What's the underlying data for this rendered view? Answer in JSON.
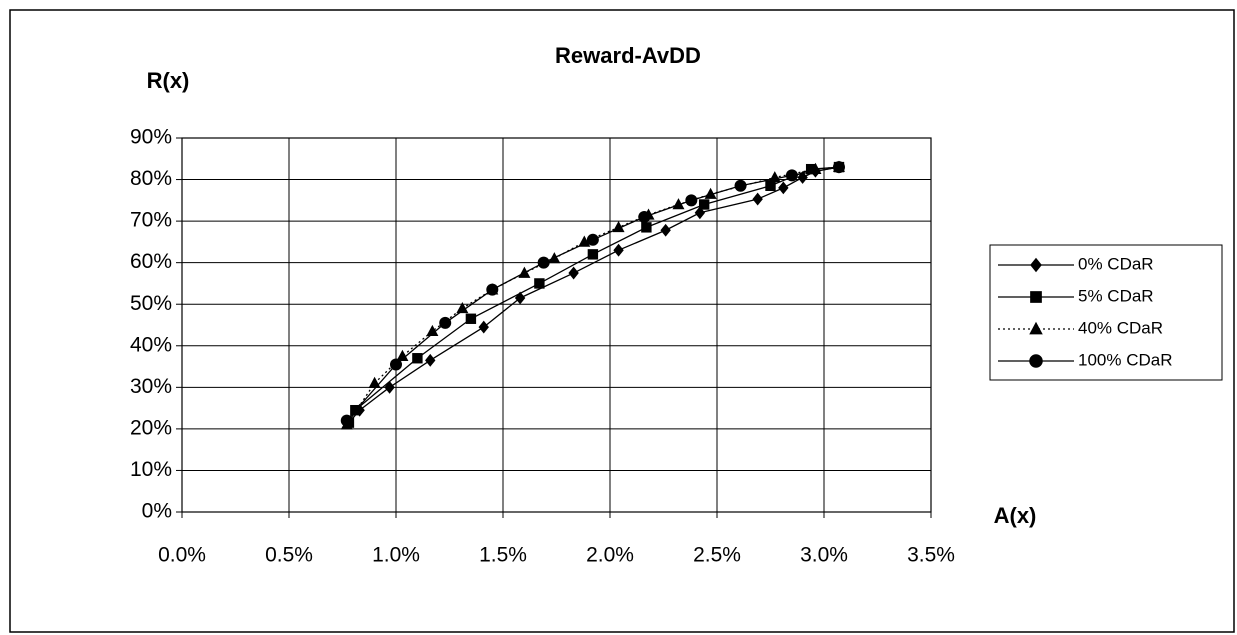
{
  "chart_data": {
    "type": "line",
    "title": "Reward-AvDD",
    "y_label": "R(x)",
    "x_label": "A(x)",
    "xlim": [
      0,
      3.5
    ],
    "ylim": [
      0,
      90
    ],
    "grid": true,
    "legend": "right",
    "xticks": [
      {
        "value": 0,
        "label": "0.0%"
      },
      {
        "value": 0.5,
        "label": "0.5%"
      },
      {
        "value": 1,
        "label": "1.0%"
      },
      {
        "value": 1.5,
        "label": "1.5%"
      },
      {
        "value": 2,
        "label": "2.0%"
      },
      {
        "value": 2.5,
        "label": "2.5%"
      },
      {
        "value": 3,
        "label": "3.0%"
      },
      {
        "value": 3.5,
        "label": "3.5%"
      }
    ],
    "yticks": [
      {
        "value": 0,
        "label": "0%"
      },
      {
        "value": 10,
        "label": "10%"
      },
      {
        "value": 20,
        "label": "20%"
      },
      {
        "value": 30,
        "label": "30%"
      },
      {
        "value": 40,
        "label": "40%"
      },
      {
        "value": 50,
        "label": "50%"
      },
      {
        "value": 60,
        "label": "60%"
      },
      {
        "value": 70,
        "label": "70%"
      },
      {
        "value": 80,
        "label": "80%"
      },
      {
        "value": 90,
        "label": "90%"
      }
    ],
    "series": [
      {
        "name": "0% CDaR",
        "color": "#000000",
        "marker": "diamond",
        "dash": "solid",
        "x": [
          0.78,
          0.83,
          0.97,
          1.16,
          1.41,
          1.58,
          1.83,
          2.04,
          2.26,
          2.42,
          2.69,
          2.81,
          2.9,
          2.96,
          3.07
        ],
        "values": [
          21.5,
          24.5,
          30,
          36.5,
          44.5,
          51.5,
          57.5,
          63,
          67.8,
          72,
          75.3,
          78,
          80.5,
          82,
          83
        ]
      },
      {
        "name": "5% CDaR",
        "color": "#000000",
        "marker": "square",
        "dash": "solid",
        "x": [
          0.78,
          0.81,
          1.1,
          1.35,
          1.67,
          1.92,
          2.17,
          2.44,
          2.75,
          2.94,
          3.07
        ],
        "values": [
          21.5,
          24.5,
          37,
          46.5,
          55,
          62,
          68.5,
          74,
          78.5,
          82.5,
          83
        ]
      },
      {
        "name": "40% CDaR",
        "color": "#000000",
        "marker": "triangle",
        "dash": "dotted",
        "x": [
          0.77,
          0.9,
          1.03,
          1.17,
          1.31,
          1.45,
          1.6,
          1.74,
          1.88,
          2.04,
          2.18,
          2.32,
          2.47,
          2.77,
          2.96,
          3.07
        ],
        "values": [
          21,
          31,
          37.5,
          43.5,
          49,
          53.5,
          57.5,
          61,
          65,
          68.5,
          71.5,
          74,
          76.5,
          80.5,
          82.5,
          83
        ]
      },
      {
        "name": "100% CDaR",
        "color": "#000000",
        "marker": "circle",
        "dash": "solid",
        "x": [
          0.77,
          1.0,
          1.23,
          1.45,
          1.69,
          1.92,
          2.16,
          2.38,
          2.61,
          2.85,
          3.07
        ],
        "values": [
          22,
          35.5,
          45.5,
          53.5,
          60,
          65.5,
          71,
          75,
          78.5,
          81,
          83
        ]
      }
    ]
  }
}
